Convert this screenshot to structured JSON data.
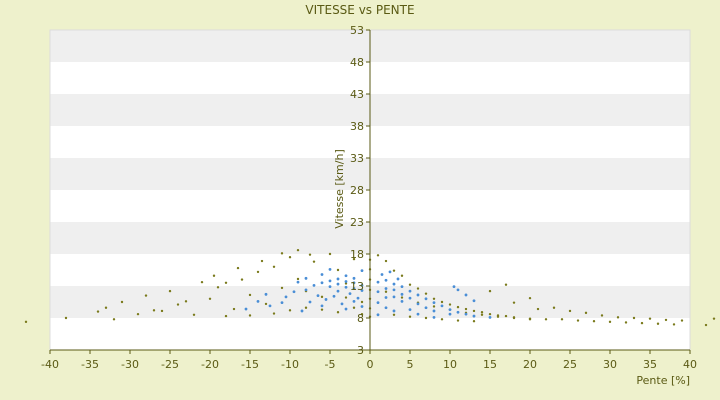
{
  "chart_data": {
    "type": "scatter",
    "title": "VITESSE vs PENTE",
    "xlabel": "Pente [%]",
    "ylabel": "Vitesse [km/h]",
    "xlim": [
      -40,
      40
    ],
    "ylim": [
      3,
      53
    ],
    "xticks": [
      -40,
      -35,
      -30,
      -25,
      -20,
      -15,
      -10,
      -5,
      0,
      5,
      10,
      15,
      20,
      25,
      30,
      35,
      40
    ],
    "yticks": [
      3,
      8,
      13,
      18,
      23,
      28,
      33,
      38,
      43,
      48,
      53
    ],
    "grid": "horizontal alternating bands",
    "legend": "none",
    "colors": {
      "band_light": "#ffffff",
      "band_dark": "#efefef",
      "series1": "#7a7a1c",
      "series2": "#4a8ed6",
      "axis": "#5a5a14",
      "background": "#eef1cc"
    },
    "series": [
      {
        "points": [
          [
            -38,
            8
          ],
          [
            -34,
            9
          ],
          [
            -33,
            9.6
          ],
          [
            -32,
            7.8
          ],
          [
            -31,
            10.5
          ],
          [
            -28,
            11.5
          ],
          [
            -27,
            9.2
          ],
          [
            -25,
            12.2
          ],
          [
            -23,
            10.6
          ],
          [
            -22,
            8.5
          ],
          [
            -20,
            11
          ],
          [
            -19,
            12.8
          ],
          [
            -18,
            13.5
          ],
          [
            -17,
            9.4
          ],
          [
            -16,
            14
          ],
          [
            -15,
            11.6
          ],
          [
            -14,
            15.2
          ],
          [
            -13,
            10.2
          ],
          [
            -12,
            16
          ],
          [
            -11,
            12.7
          ],
          [
            -10,
            17.5
          ],
          [
            -9,
            14.1
          ],
          [
            -8,
            12.2
          ],
          [
            -7,
            16.8
          ],
          [
            -6,
            11.3
          ],
          [
            -5,
            18
          ],
          [
            -4,
            15.5
          ],
          [
            -3,
            13.4
          ],
          [
            -2,
            17.2
          ],
          [
            -1,
            10.5
          ],
          [
            -1,
            8.6
          ],
          [
            -2,
            9.6
          ],
          [
            -3,
            11.2
          ],
          [
            -4,
            8.9
          ],
          [
            -6,
            9.3
          ],
          [
            -8,
            9.6
          ],
          [
            -10,
            9.2
          ],
          [
            -12,
            8.7
          ],
          [
            -15,
            8.4
          ],
          [
            -18,
            8.3
          ],
          [
            -21,
            13.6
          ],
          [
            -24,
            10.1
          ],
          [
            -26,
            9.1
          ],
          [
            -29,
            8.6
          ],
          [
            -19.5,
            14.6
          ],
          [
            -16.5,
            15.8
          ],
          [
            -13.5,
            16.9
          ],
          [
            -11,
            18.1
          ],
          [
            -9,
            18.6
          ],
          [
            -7.5,
            17.9
          ],
          [
            1,
            17.8
          ],
          [
            2,
            16.9
          ],
          [
            3,
            15.4
          ],
          [
            4,
            14.6
          ],
          [
            5,
            13.2
          ],
          [
            6,
            12.6
          ],
          [
            7,
            11.8
          ],
          [
            8,
            11
          ],
          [
            9,
            10.5
          ],
          [
            10,
            10.1
          ],
          [
            11,
            9.7
          ],
          [
            12,
            9.4
          ],
          [
            13,
            9.1
          ],
          [
            14,
            8.9
          ],
          [
            15,
            8.6
          ],
          [
            16,
            8.4
          ],
          [
            17,
            8.3
          ],
          [
            18,
            8.1
          ],
          [
            20,
            7.9
          ],
          [
            22,
            7.8
          ],
          [
            24,
            7.8
          ],
          [
            26,
            7.6
          ],
          [
            28,
            7.5
          ],
          [
            30,
            7.4
          ],
          [
            32,
            7.3
          ],
          [
            34,
            7.2
          ],
          [
            36,
            7.1
          ],
          [
            38,
            7
          ],
          [
            42,
            6.9
          ],
          [
            44,
            7.9
          ],
          [
            2,
            12.1
          ],
          [
            4,
            11.2
          ],
          [
            6,
            10.4
          ],
          [
            8,
            9.8
          ],
          [
            10,
            9.3
          ],
          [
            12,
            8.8
          ],
          [
            14,
            8.5
          ],
          [
            16,
            8.2
          ],
          [
            18,
            8
          ],
          [
            20,
            7.8
          ],
          [
            3,
            8.5
          ],
          [
            5,
            8.2
          ],
          [
            7,
            8
          ],
          [
            9,
            7.8
          ],
          [
            11,
            7.6
          ],
          [
            13,
            7.5
          ],
          [
            17,
            13.2
          ],
          [
            20,
            11.1
          ],
          [
            23,
            9.6
          ],
          [
            25,
            9.1
          ],
          [
            27,
            8.8
          ],
          [
            29,
            8.4
          ],
          [
            31,
            8.1
          ],
          [
            33,
            8
          ],
          [
            35,
            7.9
          ],
          [
            37,
            7.7
          ],
          [
            39,
            7.6
          ],
          [
            15,
            12.2
          ],
          [
            18,
            10.4
          ],
          [
            21,
            9.4
          ],
          [
            0,
            8.2
          ],
          [
            0,
            9.5
          ],
          [
            0,
            11
          ],
          [
            0,
            12.4
          ],
          [
            0,
            14
          ],
          [
            0,
            15.6
          ],
          [
            0,
            17.1
          ],
          [
            -44,
            7.4
          ]
        ]
      },
      {
        "points": [
          [
            -9,
            13.6
          ],
          [
            -8,
            14.2
          ],
          [
            -8,
            12.4
          ],
          [
            -7,
            13.1
          ],
          [
            -6,
            13.5
          ],
          [
            -6,
            14.8
          ],
          [
            -5,
            13.8
          ],
          [
            -5,
            12.9
          ],
          [
            -4,
            13.3
          ],
          [
            -4,
            14.1
          ],
          [
            -4,
            12.2
          ],
          [
            -3,
            13.7
          ],
          [
            -3,
            12.8
          ],
          [
            -3,
            14.6
          ],
          [
            -2,
            13.5
          ],
          [
            -2,
            12.6
          ],
          [
            -2,
            14.2
          ],
          [
            -1,
            13.1
          ],
          [
            -1,
            15.4
          ],
          [
            -6.5,
            11.5
          ],
          [
            -7.5,
            10.5
          ],
          [
            -5.5,
            10.9
          ],
          [
            -4.5,
            11.4
          ],
          [
            -3.5,
            10.2
          ],
          [
            -2.5,
            11.8
          ],
          [
            -1.5,
            11.1
          ],
          [
            -10.5,
            11.3
          ],
          [
            -9.5,
            12.1
          ],
          [
            -11,
            10.4
          ],
          [
            -12.5,
            9.9
          ],
          [
            -13,
            11.7
          ],
          [
            -14,
            10.6
          ],
          [
            -15.5,
            9.4
          ],
          [
            -8.5,
            9.1
          ],
          [
            -6,
            9.9
          ],
          [
            -3,
            9.4
          ],
          [
            -2,
            10.6
          ],
          [
            -1,
            9.8
          ],
          [
            -1,
            12.3
          ],
          [
            -5,
            15.6
          ],
          [
            1,
            13.6
          ],
          [
            1,
            12.1
          ],
          [
            2,
            13.9
          ],
          [
            2,
            12.6
          ],
          [
            2,
            11.2
          ],
          [
            3,
            13.3
          ],
          [
            3,
            12.4
          ],
          [
            3,
            11.3
          ],
          [
            4,
            12.9
          ],
          [
            4,
            11.7
          ],
          [
            4,
            10.6
          ],
          [
            5,
            12.2
          ],
          [
            5,
            11.1
          ],
          [
            6,
            11.6
          ],
          [
            6,
            10.2
          ],
          [
            7,
            11
          ],
          [
            7,
            9.6
          ],
          [
            8,
            10.4
          ],
          [
            8,
            9.1
          ],
          [
            9,
            9.9
          ],
          [
            10,
            9.3
          ],
          [
            10,
            8.6
          ],
          [
            11,
            8.9
          ],
          [
            12,
            8.6
          ],
          [
            13,
            8.3
          ],
          [
            15,
            8.1
          ],
          [
            2.5,
            15.2
          ],
          [
            1.5,
            14.8
          ],
          [
            3.5,
            14.1
          ],
          [
            1,
            10.4
          ],
          [
            2,
            9.6
          ],
          [
            5,
            9.3
          ],
          [
            6,
            8.6
          ],
          [
            8,
            8.1
          ],
          [
            11,
            12.4
          ],
          [
            12,
            11.6
          ],
          [
            13,
            10.7
          ],
          [
            10.5,
            12.9
          ],
          [
            1,
            8.5
          ],
          [
            3,
            9.1
          ]
        ]
      }
    ]
  }
}
